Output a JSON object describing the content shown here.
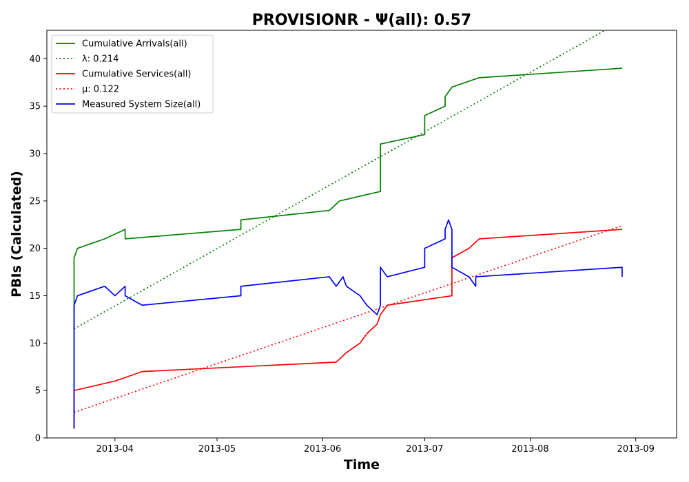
{
  "chart_data": {
    "type": "line",
    "title": "PROVISIONR -  Ψ(all): 0.57",
    "xlabel": "Time",
    "ylabel": "PBIs (Calculated)",
    "x_axis": {
      "type": "date",
      "range": [
        "2013-03-12",
        "2013-09-13"
      ],
      "ticks": [
        "2013-04-01",
        "2013-05-01",
        "2013-06-01",
        "2013-07-01",
        "2013-08-01",
        "2013-09-01"
      ],
      "tick_labels": [
        "2013-04",
        "2013-05",
        "2013-06",
        "2013-07",
        "2013-08",
        "2013-09"
      ]
    },
    "y_axis": {
      "range": [
        0,
        43
      ],
      "ticks": [
        0,
        5,
        10,
        15,
        20,
        25,
        30,
        35,
        40
      ]
    },
    "grid": false,
    "legend_position": "top-left",
    "series": [
      {
        "name": "Cumulative Arrivals(all)",
        "color": "#008000",
        "style": "solid",
        "points": [
          [
            "2013-03-20",
            1
          ],
          [
            "2013-03-20",
            19
          ],
          [
            "2013-03-21",
            20
          ],
          [
            "2013-03-29",
            21
          ],
          [
            "2013-04-04",
            22
          ],
          [
            "2013-04-04",
            21
          ],
          [
            "2013-05-08",
            22
          ],
          [
            "2013-05-08",
            23
          ],
          [
            "2013-06-03",
            24
          ],
          [
            "2013-06-06",
            25
          ],
          [
            "2013-06-18",
            26
          ],
          [
            "2013-06-18",
            31
          ],
          [
            "2013-07-01",
            32
          ],
          [
            "2013-07-01",
            34
          ],
          [
            "2013-07-07",
            35
          ],
          [
            "2013-07-07",
            36
          ],
          [
            "2013-07-09",
            37
          ],
          [
            "2013-07-17",
            38
          ],
          [
            "2013-08-28",
            39
          ]
        ]
      },
      {
        "name": "λ: 0.214",
        "color": "#008000",
        "style": "dotted",
        "points": [
          [
            "2013-03-20",
            11.5
          ],
          [
            "2013-08-23",
            43
          ]
        ]
      },
      {
        "name": "Cumulative Services(all)",
        "color": "#ff0000",
        "style": "solid",
        "points": [
          [
            "2013-03-20",
            1
          ],
          [
            "2013-03-20",
            5
          ],
          [
            "2013-04-01",
            6
          ],
          [
            "2013-04-09",
            7
          ],
          [
            "2013-06-05",
            8
          ],
          [
            "2013-06-08",
            9
          ],
          [
            "2013-06-12",
            10
          ],
          [
            "2013-06-14",
            11
          ],
          [
            "2013-06-17",
            12
          ],
          [
            "2013-06-18",
            13
          ],
          [
            "2013-06-20",
            14
          ],
          [
            "2013-07-09",
            15
          ],
          [
            "2013-07-09",
            19
          ],
          [
            "2013-07-14",
            20
          ],
          [
            "2013-07-17",
            21
          ],
          [
            "2013-08-28",
            22
          ]
        ]
      },
      {
        "name": "μ: 0.122",
        "color": "#ff0000",
        "style": "dotted",
        "points": [
          [
            "2013-03-20",
            2.7
          ],
          [
            "2013-08-28",
            22.4
          ]
        ]
      },
      {
        "name": "Measured System Size(all)",
        "color": "#0000ff",
        "style": "solid",
        "points": [
          [
            "2013-03-20",
            1
          ],
          [
            "2013-03-20",
            2
          ],
          [
            "2013-03-20",
            14
          ],
          [
            "2013-03-21",
            15
          ],
          [
            "2013-03-29",
            16
          ],
          [
            "2013-04-01",
            15
          ],
          [
            "2013-04-04",
            16
          ],
          [
            "2013-04-04",
            15
          ],
          [
            "2013-04-09",
            14
          ],
          [
            "2013-05-08",
            15
          ],
          [
            "2013-05-08",
            16
          ],
          [
            "2013-06-03",
            17
          ],
          [
            "2013-06-05",
            16
          ],
          [
            "2013-06-07",
            17
          ],
          [
            "2013-06-08",
            16
          ],
          [
            "2013-06-12",
            15
          ],
          [
            "2013-06-14",
            14
          ],
          [
            "2013-06-17",
            13
          ],
          [
            "2013-06-18",
            14
          ],
          [
            "2013-06-18",
            18
          ],
          [
            "2013-06-20",
            17
          ],
          [
            "2013-07-01",
            18
          ],
          [
            "2013-07-01",
            20
          ],
          [
            "2013-07-07",
            21
          ],
          [
            "2013-07-07",
            22
          ],
          [
            "2013-07-08",
            23
          ],
          [
            "2013-07-09",
            22
          ],
          [
            "2013-07-09",
            18
          ],
          [
            "2013-07-14",
            17
          ],
          [
            "2013-07-16",
            16
          ],
          [
            "2013-07-16",
            17
          ],
          [
            "2013-08-28",
            18
          ],
          [
            "2013-08-28",
            17
          ]
        ]
      }
    ]
  }
}
